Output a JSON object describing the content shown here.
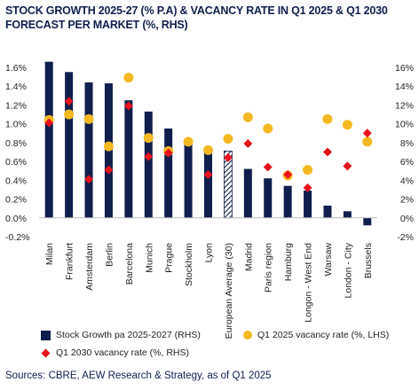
{
  "title": "STOCK GROWTH 2025-27 (% P.A) & VACANCY RATE IN Q1 2025 & Q1 2030 FORECAST PER MARKET (%, RHS)",
  "source": "Sources: CBRE, AEW Research & Strategy, as of Q1 2025",
  "legend": {
    "bars": "Stock Growth pa 2025-2027 (RHS)",
    "dots": "Q1 2025 vacancy rate (%, LHS)",
    "diamonds": "Q1 2030 vacancy rate (%, RHS)"
  },
  "colors": {
    "bar": "#0f1f4d",
    "dot": "#f4b922",
    "diamond": "#e8131c",
    "hatch": "#0f1f4d"
  },
  "chart_data": {
    "type": "bar",
    "categories": [
      "Milan",
      "Frankfurt",
      "Amsterdam",
      "Berlin",
      "Barcelona",
      "Munich",
      "Prague",
      "Stockholm",
      "Lyon",
      "European Average (30)",
      "Madrid",
      "Paris region",
      "Hamburg",
      "Longon - West End",
      "Warsaw",
      "London - City",
      "Brussels"
    ],
    "hatched_index": 9,
    "left_axis": {
      "min": -0.2,
      "max": 1.6,
      "step": 0.2,
      "format": "pct1"
    },
    "right_axis": {
      "min": -2,
      "max": 16,
      "step": 2,
      "format": "pct0"
    },
    "series": [
      {
        "name": "Stock Growth pa 2025-2027 (RHS)",
        "kind": "bar",
        "axis": "left",
        "values": [
          1.66,
          1.55,
          1.44,
          1.43,
          1.25,
          1.13,
          0.95,
          0.84,
          0.69,
          0.71,
          0.52,
          0.42,
          0.34,
          0.29,
          0.13,
          0.07,
          -0.08
        ]
      },
      {
        "name": "Q1 2025 vacancy rate (%, LHS)",
        "kind": "dot",
        "axis": "right",
        "values": [
          10.4,
          11.0,
          10.5,
          7.6,
          14.9,
          8.5,
          7.1,
          8.1,
          7.2,
          8.4,
          10.7,
          9.5,
          4.5,
          5.1,
          10.5,
          9.9,
          8.1
        ]
      },
      {
        "name": "Q1 2030 vacancy rate (%, RHS)",
        "kind": "diamond",
        "axis": "right",
        "values": [
          10.1,
          12.4,
          4.1,
          5.1,
          11.9,
          6.5,
          6.9,
          null,
          4.6,
          6.4,
          7.9,
          5.4,
          4.6,
          3.2,
          7.0,
          5.5,
          9.0
        ]
      }
    ]
  }
}
